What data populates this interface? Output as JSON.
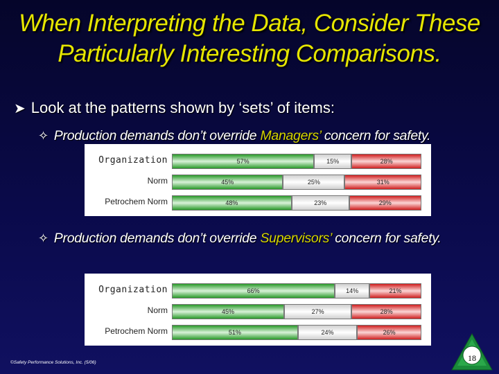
{
  "title": {
    "line1": "When Interpreting the Data, Consider These",
    "line2": "Particularly Interesting Comparisons."
  },
  "bullet": "Look at the patterns shown by ‘sets’ of items:",
  "sub1": {
    "pre": "Production demands don’t override ",
    "highlight": "Managers’",
    "post": " concern for safety."
  },
  "sub2": {
    "pre": "Production demands don’t override ",
    "highlight": "Supervisors’",
    "post": " concern for safety."
  },
  "chart_data": [
    {
      "type": "bar",
      "stacked": true,
      "orientation": "horizontal",
      "categories": [
        "Organization",
        "Norm",
        "Petrochem Norm"
      ],
      "series": [
        {
          "values": [
            57,
            45,
            48
          ],
          "color": "#2a9a2a"
        },
        {
          "values": [
            15,
            25,
            23
          ],
          "color": "#ffffff"
        },
        {
          "values": [
            28,
            31,
            29
          ],
          "color": "#d02020"
        }
      ],
      "labels": [
        [
          "57%",
          "15%",
          "28%"
        ],
        [
          "45%",
          "25%",
          "31%"
        ],
        [
          "48%",
          "23%",
          "29%"
        ]
      ]
    },
    {
      "type": "bar",
      "stacked": true,
      "orientation": "horizontal",
      "categories": [
        "Organization",
        "Norm",
        "Petrochem Norm"
      ],
      "series": [
        {
          "values": [
            66,
            45,
            51
          ],
          "color": "#2a9a2a"
        },
        {
          "values": [
            14,
            27,
            24
          ],
          "color": "#ffffff"
        },
        {
          "values": [
            21,
            28,
            26
          ],
          "color": "#d02020"
        }
      ],
      "labels": [
        [
          "66%",
          "14%",
          "21%"
        ],
        [
          "45%",
          "27%",
          "28%"
        ],
        [
          "51%",
          "24%",
          "26%"
        ]
      ]
    }
  ],
  "footer": "©Safety Performance Solutions, Inc. (5/06)",
  "page_number": "18"
}
